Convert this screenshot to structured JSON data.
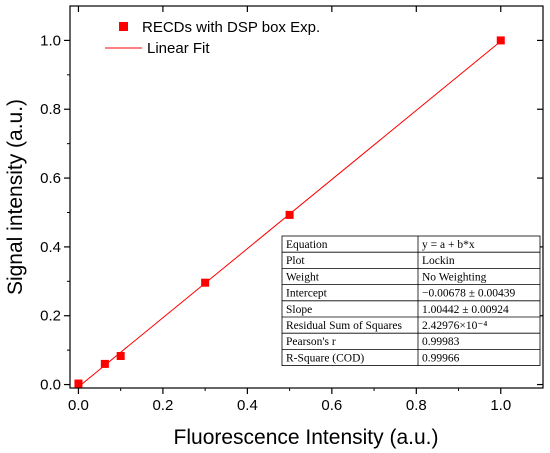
{
  "chart_data": {
    "type": "scatter",
    "xlabel": "Fluorescence Intensity (a.u.)",
    "ylabel": "Signal intensity (a.u.)",
    "xlim": [
      -0.02,
      1.1
    ],
    "ylim": [
      -0.01,
      1.1
    ],
    "x_ticks": [
      "0.0",
      "0.2",
      "0.4",
      "0.6",
      "0.8",
      "1.0"
    ],
    "y_ticks": [
      "0.0",
      "0.2",
      "0.4",
      "0.6",
      "0.8",
      "1.0"
    ],
    "grid": false,
    "legend_position": "top-left",
    "series": [
      {
        "name": "RECDs with DSP box Exp.",
        "type": "scatter",
        "marker": "square",
        "color": "#ff0000",
        "points": [
          {
            "x": 0.0,
            "y": 0.003
          },
          {
            "x": 0.0625,
            "y": 0.06
          },
          {
            "x": 0.1,
            "y": 0.083
          },
          {
            "x": 0.3,
            "y": 0.296
          },
          {
            "x": 0.5,
            "y": 0.493
          },
          {
            "x": 1.0,
            "y": 1.0
          }
        ]
      },
      {
        "name": "Linear Fit",
        "type": "line",
        "color": "#ff0000",
        "intercept": -0.00678,
        "slope": 1.00442,
        "x_range": [
          0.0,
          1.0
        ]
      }
    ],
    "fit_table": [
      [
        "Equation",
        "y = a + b*x"
      ],
      [
        "Plot",
        "Lockin"
      ],
      [
        "Weight",
        "No Weighting"
      ],
      [
        "Intercept",
        "−0.00678 ± 0.00439"
      ],
      [
        "Slope",
        "1.00442 ± 0.00924"
      ],
      [
        "Residual Sum of Squares",
        "2.42976×10⁻⁴"
      ],
      [
        "Pearson's r",
        "0.99983"
      ],
      [
        "R-Square (COD)",
        "0.99966"
      ]
    ]
  }
}
